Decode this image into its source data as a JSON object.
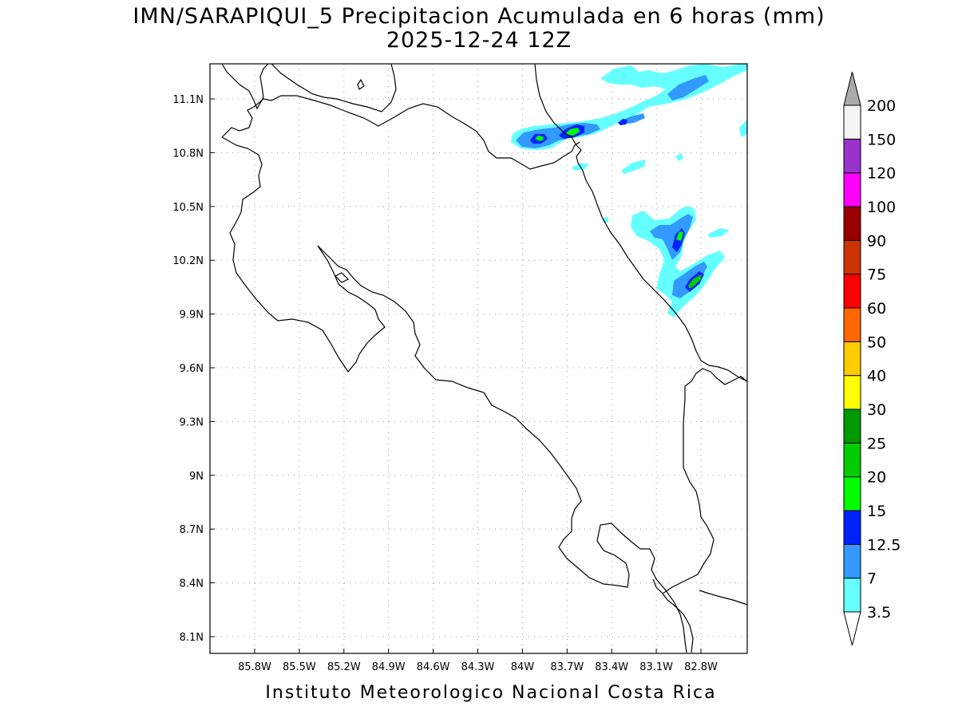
{
  "title_line1": "IMN/SARAPIQUI_5 Precipitacion Acumulada en 6 horas (mm)",
  "title_line2": "2025-12-24 12Z",
  "footer": "Instituto Meteorologico Nacional Costa Rica",
  "map": {
    "lon_range": [
      -86.1,
      -82.5
    ],
    "lat_range": [
      8.0,
      11.3
    ],
    "x_ticks": [
      {
        "lon": -85.8,
        "label": "85.8W"
      },
      {
        "lon": -85.5,
        "label": "85.5W"
      },
      {
        "lon": -85.2,
        "label": "85.2W"
      },
      {
        "lon": -84.9,
        "label": "84.9W"
      },
      {
        "lon": -84.6,
        "label": "84.6W"
      },
      {
        "lon": -84.3,
        "label": "84.3W"
      },
      {
        "lon": -84.0,
        "label": "84W"
      },
      {
        "lon": -83.7,
        "label": "83.7W"
      },
      {
        "lon": -83.4,
        "label": "83.4W"
      },
      {
        "lon": -83.1,
        "label": "83.1W"
      },
      {
        "lon": -82.8,
        "label": "82.8W"
      }
    ],
    "y_ticks": [
      {
        "lat": 11.1,
        "label": "11.1N"
      },
      {
        "lat": 10.8,
        "label": "10.8N"
      },
      {
        "lat": 10.5,
        "label": "10.5N"
      },
      {
        "lat": 10.2,
        "label": "10.2N"
      },
      {
        "lat": 9.9,
        "label": "9.9N"
      },
      {
        "lat": 9.6,
        "label": "9.6N"
      },
      {
        "lat": 9.3,
        "label": "9.3N"
      },
      {
        "lat": 9.0,
        "label": "9N"
      },
      {
        "lat": 8.7,
        "label": "8.7N"
      },
      {
        "lat": 8.4,
        "label": "8.4N"
      },
      {
        "lat": 8.1,
        "label": "8.1N"
      }
    ],
    "grid": true
  },
  "colorbar": {
    "levels": [
      {
        "label": "3.5",
        "color": "#66ffff"
      },
      {
        "label": "7",
        "color": "#3399ff"
      },
      {
        "label": "12.5",
        "color": "#0022ff"
      },
      {
        "label": "15",
        "color": "#00ff00"
      },
      {
        "label": "20",
        "color": "#00cc00"
      },
      {
        "label": "25",
        "color": "#009900"
      },
      {
        "label": "30",
        "color": "#ffff00"
      },
      {
        "label": "40",
        "color": "#ffcc00"
      },
      {
        "label": "50",
        "color": "#ff6600"
      },
      {
        "label": "60",
        "color": "#ff0000"
      },
      {
        "label": "75",
        "color": "#cc3300"
      },
      {
        "label": "90",
        "color": "#990000"
      },
      {
        "label": "100",
        "color": "#ff00ff"
      },
      {
        "label": "120",
        "color": "#9933cc"
      },
      {
        "label": "150",
        "color": "#f5f5f5"
      },
      {
        "label": "200",
        "color": "#aaaaaa"
      }
    ],
    "below_color": "#ffffff",
    "above_color": "#aaaaaa"
  }
}
